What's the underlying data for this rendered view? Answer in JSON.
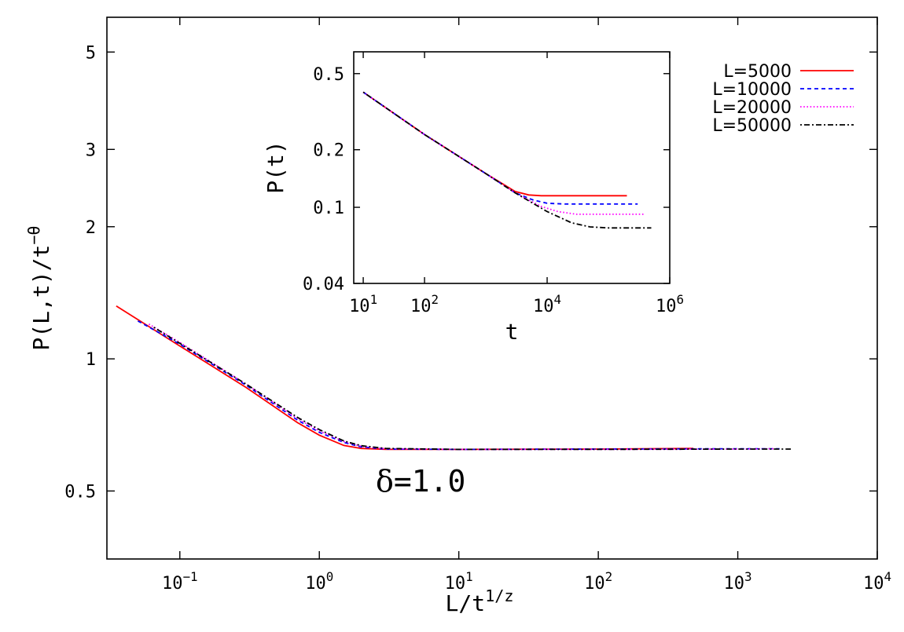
{
  "chart_data": [
    {
      "id": "main",
      "type": "line",
      "xscale": "log",
      "yscale": "log",
      "xlabel": "L/t",
      "xlabel_sup": "1/z",
      "ylabel": "P(L,t)/t",
      "ylabel_sup": "−θ",
      "xlim": [
        0.03,
        10000
      ],
      "ylim": [
        0.35,
        6
      ],
      "xticks": [
        {
          "value": 0.1,
          "base": "10",
          "exp": "−1"
        },
        {
          "value": 1,
          "base": "10",
          "exp": "0"
        },
        {
          "value": 10,
          "base": "10",
          "exp": "1"
        },
        {
          "value": 100,
          "base": "10",
          "exp": "2"
        },
        {
          "value": 1000,
          "base": "10",
          "exp": "3"
        },
        {
          "value": 10000,
          "base": "10",
          "exp": "4"
        }
      ],
      "yticks": [
        {
          "value": 0.5,
          "label": "0.5"
        },
        {
          "value": 1,
          "label": "1"
        },
        {
          "value": 2,
          "label": "2"
        },
        {
          "value": 3,
          "label": "3"
        },
        {
          "value": 5,
          "label": "5"
        }
      ],
      "annotation": {
        "symbol": "δ",
        "text": "=1.0"
      },
      "grid": false,
      "legend_position": "top-right",
      "series": [
        {
          "name": "L=5000",
          "color": "#ff0000",
          "dash": "solid",
          "x": [
            0.035,
            0.1,
            0.3,
            0.7,
            1.0,
            1.5,
            2.0,
            3.0,
            10,
            100,
            480
          ],
          "y": [
            1.32,
            1.07,
            0.86,
            0.715,
            0.67,
            0.635,
            0.625,
            0.622,
            0.622,
            0.623,
            0.625
          ]
        },
        {
          "name": "L=10000",
          "color": "#0000ff",
          "dash": "dashed",
          "x": [
            0.05,
            0.1,
            0.3,
            0.7,
            1.0,
            1.5,
            2.0,
            3.0,
            10,
            100,
            1000,
            2000
          ],
          "y": [
            1.22,
            1.08,
            0.87,
            0.725,
            0.68,
            0.645,
            0.63,
            0.623,
            0.622,
            0.623,
            0.624,
            0.624
          ]
        },
        {
          "name": "L=20000",
          "color": "#ff00ff",
          "dash": "dotted",
          "x": [
            0.06,
            0.1,
            0.3,
            0.7,
            1.0,
            1.5,
            2.0,
            3.0,
            10,
            100,
            1000,
            1800
          ],
          "y": [
            1.2,
            1.09,
            0.875,
            0.73,
            0.685,
            0.648,
            0.632,
            0.624,
            0.622,
            0.622,
            0.623,
            0.624
          ]
        },
        {
          "name": "L=50000",
          "color": "#000000",
          "dash": "dashdot",
          "x": [
            0.065,
            0.1,
            0.3,
            0.7,
            1.0,
            1.5,
            2.0,
            3.0,
            10,
            100,
            1000,
            2400
          ],
          "y": [
            1.18,
            1.085,
            0.875,
            0.735,
            0.69,
            0.65,
            0.634,
            0.625,
            0.622,
            0.622,
            0.623,
            0.623
          ]
        }
      ]
    },
    {
      "id": "inset",
      "type": "line",
      "xscale": "log",
      "yscale": "log",
      "xlabel": "t",
      "ylabel": "P(t)",
      "xlim": [
        7,
        1000000
      ],
      "ylim": [
        0.04,
        0.65
      ],
      "xticks": [
        {
          "value": 10,
          "base": "10",
          "exp": "1"
        },
        {
          "value": 100,
          "base": "10",
          "exp": "2"
        },
        {
          "value": 10000,
          "base": "10",
          "exp": "4"
        },
        {
          "value": 1000000,
          "base": "10",
          "exp": "6"
        }
      ],
      "yticks": [
        {
          "value": 0.04,
          "label": "0.04"
        },
        {
          "value": 0.1,
          "label": "0.1"
        },
        {
          "value": 0.2,
          "label": "0.2"
        },
        {
          "value": 0.5,
          "label": "0.5"
        }
      ],
      "grid": false,
      "series": [
        {
          "name": "L=5000",
          "color": "#ff0000",
          "dash": "solid",
          "x": [
            10,
            100,
            1000,
            3000,
            5000,
            8000,
            20000,
            200000
          ],
          "y": [
            0.4,
            0.24,
            0.15,
            0.121,
            0.116,
            0.115,
            0.115,
            0.115
          ]
        },
        {
          "name": "L=10000",
          "color": "#0000ff",
          "dash": "dashed",
          "x": [
            10,
            100,
            1000,
            3000,
            6000,
            10000,
            20000,
            300000
          ],
          "y": [
            0.4,
            0.24,
            0.15,
            0.119,
            0.109,
            0.105,
            0.104,
            0.104
          ]
        },
        {
          "name": "L=20000",
          "color": "#ff00ff",
          "dash": "dotted",
          "x": [
            10,
            100,
            1000,
            3000,
            8000,
            15000,
            30000,
            400000
          ],
          "y": [
            0.4,
            0.24,
            0.15,
            0.119,
            0.101,
            0.095,
            0.092,
            0.092
          ]
        },
        {
          "name": "L=50000",
          "color": "#000000",
          "dash": "dashdot",
          "x": [
            10,
            100,
            1000,
            3000,
            10000,
            25000,
            50000,
            100000,
            500000
          ],
          "y": [
            0.4,
            0.24,
            0.15,
            0.119,
            0.095,
            0.083,
            0.079,
            0.078,
            0.078
          ]
        }
      ]
    }
  ]
}
